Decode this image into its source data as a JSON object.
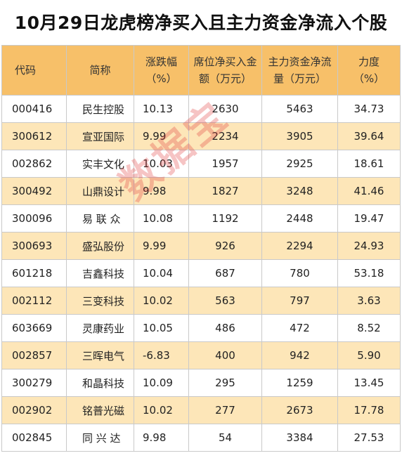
{
  "title": "10月29日龙虎榜净买入且主力资金净流入个股",
  "headers": {
    "code": "代码",
    "name": "简称",
    "change_line1": "涨跌幅",
    "change_line2": "（%）",
    "seat_line1": "席位净买入金",
    "seat_line2": "额（万元）",
    "main_line1": "主力资金净流",
    "main_line2": "量（万元）",
    "force_line1": "力度",
    "force_line2": "（%）"
  },
  "rows": [
    {
      "code": "000416",
      "name": "民生控股",
      "change": "10.13",
      "seat": "2630",
      "main": "5463",
      "force": "34.73"
    },
    {
      "code": "300612",
      "name": "宣亚国际",
      "change": "9.99",
      "seat": "2234",
      "main": "3905",
      "force": "39.64"
    },
    {
      "code": "002862",
      "name": "实丰文化",
      "change": "10.03",
      "seat": "1957",
      "main": "2925",
      "force": "18.61"
    },
    {
      "code": "300492",
      "name": "山鼎设计",
      "change": "9.98",
      "seat": "1827",
      "main": "3248",
      "force": "41.46"
    },
    {
      "code": "300096",
      "name": "易 联 众",
      "change": "10.08",
      "seat": "1192",
      "main": "2448",
      "force": "19.47"
    },
    {
      "code": "300693",
      "name": "盛弘股份",
      "change": "9.99",
      "seat": "926",
      "main": "2294",
      "force": "24.93"
    },
    {
      "code": "601218",
      "name": "吉鑫科技",
      "change": "10.04",
      "seat": "687",
      "main": "780",
      "force": "53.18"
    },
    {
      "code": "002112",
      "name": "三变科技",
      "change": "10.02",
      "seat": "563",
      "main": "797",
      "force": "3.63"
    },
    {
      "code": "603669",
      "name": "灵康药业",
      "change": "10.05",
      "seat": "486",
      "main": "472",
      "force": "8.52"
    },
    {
      "code": "002857",
      "name": "三晖电气",
      "change": "-6.83",
      "seat": "400",
      "main": "942",
      "force": "5.90"
    },
    {
      "code": "300279",
      "name": "和晶科技",
      "change": "10.09",
      "seat": "295",
      "main": "1259",
      "force": "13.45"
    },
    {
      "code": "002902",
      "name": "铭普光磁",
      "change": "10.02",
      "seat": "277",
      "main": "2673",
      "force": "17.78"
    },
    {
      "code": "002845",
      "name": "同 兴 达",
      "change": "9.98",
      "seat": "54",
      "main": "3384",
      "force": "27.53"
    }
  ],
  "watermark": "数据宝"
}
